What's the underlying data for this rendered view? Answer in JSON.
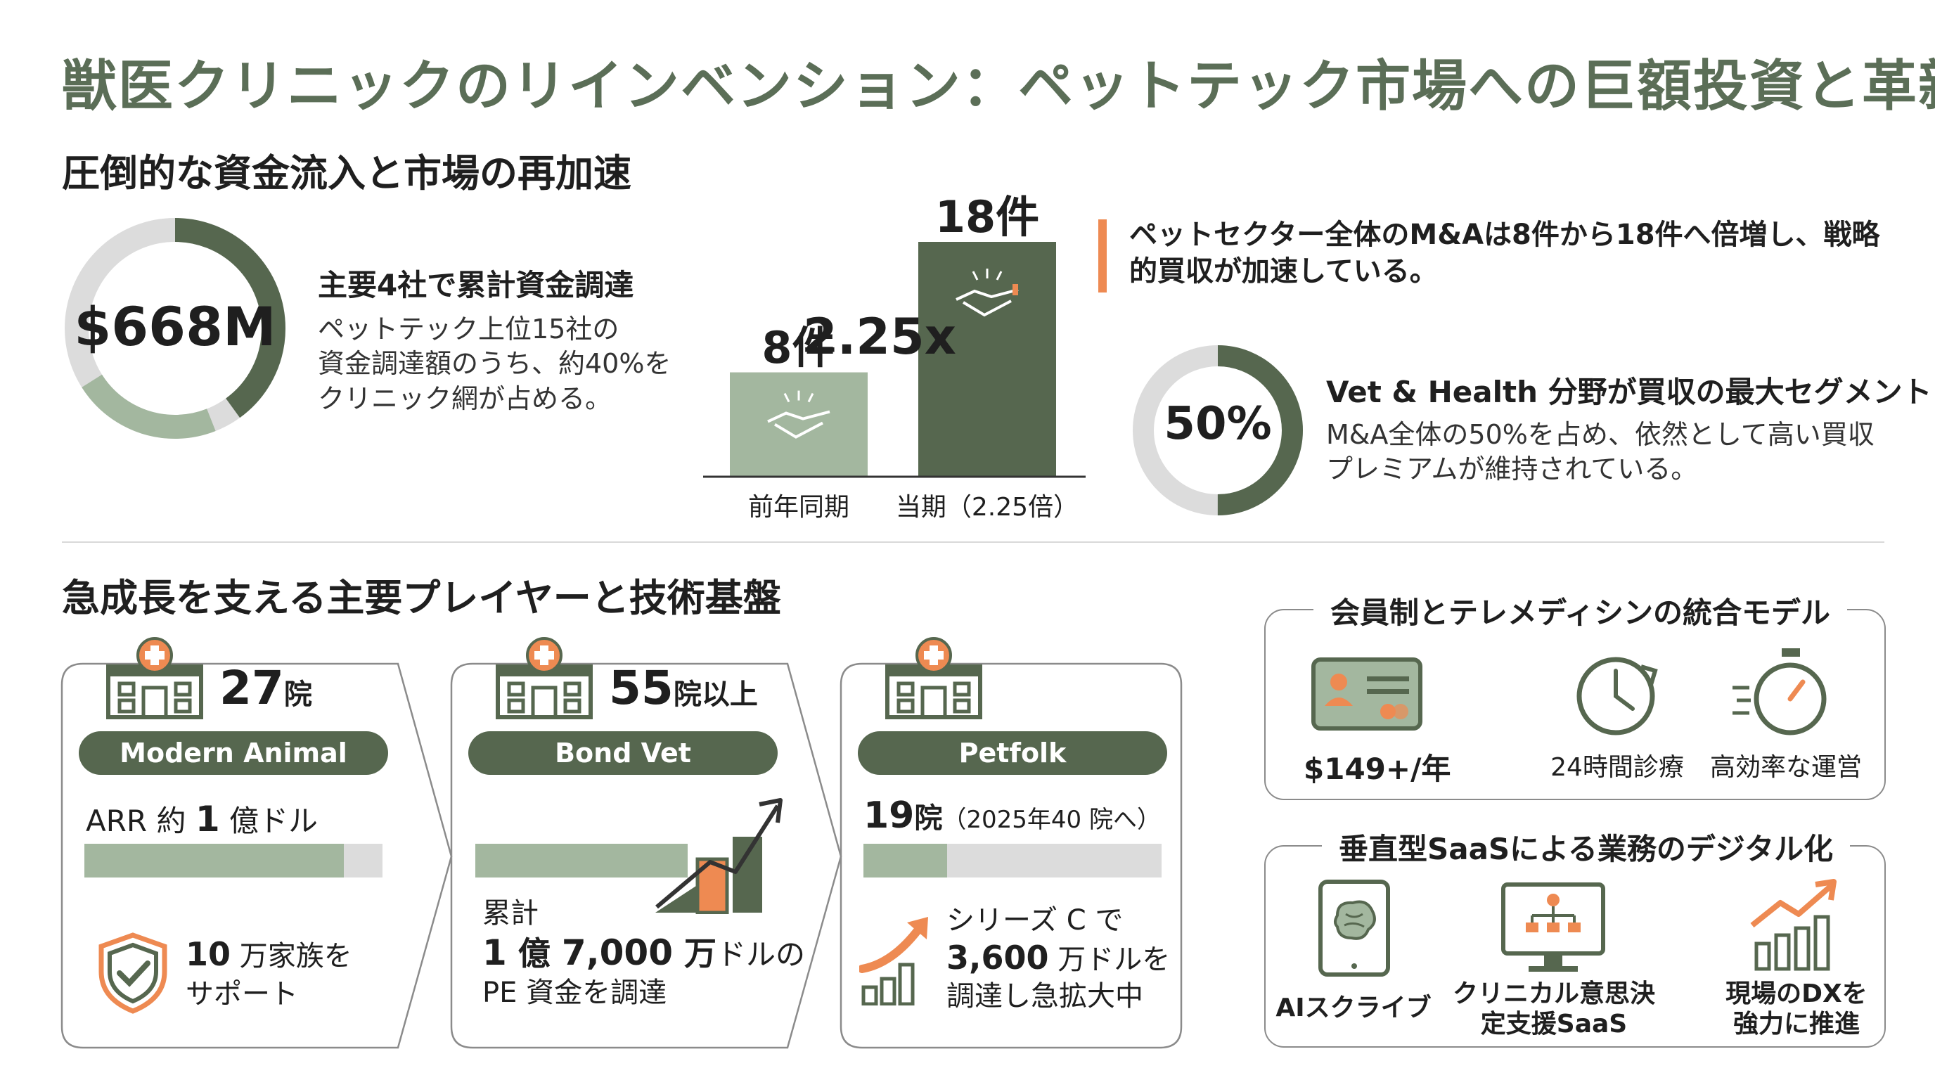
{
  "title": "獣医クリニックのリインベンション：ペットテック市場への巨額投資と革新",
  "section1": {
    "title": "圧倒的な資金流入と市場の再加速",
    "funding": {
      "value": "$668M",
      "share": 0.4,
      "label": "主要4社で累計資金調達",
      "desc_lines": [
        "ペットテック上位15社の",
        "資金調達額のうち、約40%を",
        "クリニック網が占める。"
      ]
    },
    "ma_chart": {
      "bars": [
        {
          "label": "前年同期",
          "value": 8,
          "value_label": "8件"
        },
        {
          "label": "当期（2.25倍）",
          "value": 18,
          "value_label": "18件"
        }
      ],
      "multiplier": "2.25x"
    },
    "ma_note_lines": [
      "ペットセクター全体のM&Aは8件から18件へ倍増し、戦略",
      "的買収が加速している。"
    ],
    "vet_share": {
      "value": "50%",
      "share": 0.5,
      "label": "Vet & Health 分野が買収の最大セグメント",
      "desc_lines": [
        "M&A全体の50%を占め、依然として高い買収",
        "プレミアムが維持されている。"
      ]
    }
  },
  "section2": {
    "title": "急成長を支える主要プレイヤーと技術基盤",
    "cards": [
      {
        "count": "27",
        "count_unit": "院",
        "name": "Modern Animal",
        "metric_pre": "ARR 約 ",
        "metric_num": "1",
        "metric_post": " 億ドル",
        "progress": 0.87,
        "foot_num": "10",
        "foot_line1": " 万家族を",
        "foot_line2": "サポート"
      },
      {
        "count": "55",
        "count_unit": "院以上",
        "name": "Bond Vet",
        "progress": 0.72,
        "line1": "累計",
        "line2_num1": "1",
        "line2_mid1": " 億 ",
        "line2_num2": "7,000",
        "line2_mid2": " 万",
        "line2_post": "ドルの",
        "line3": "PE 資金を調達"
      },
      {
        "count": "19",
        "count_unit": "院",
        "name": "Petfolk",
        "metric_note": "（2025年40 院へ）",
        "progress": 0.28,
        "foot_line1": "シリーズ C で",
        "foot_num": "3,600",
        "foot_line2_post": " 万ドルを",
        "foot_line3": "調達し急拡大中"
      }
    ],
    "membership": {
      "title": "会員制とテレメディシンの統合モデル",
      "items": [
        {
          "icon": "member-card-icon",
          "label": "$149+/年"
        },
        {
          "icon": "clock-icon",
          "label": "24時間診療"
        },
        {
          "icon": "stopwatch-icon",
          "label": "高効率な運営"
        }
      ]
    },
    "saas": {
      "title": "垂直型SaaSによる業務のデジタル化",
      "items": [
        {
          "icon": "ai-tablet-icon",
          "label_lines": [
            "AIスクライブ"
          ]
        },
        {
          "icon": "decision-monitor-icon",
          "label_lines": [
            "クリニカル意思決",
            "定支援SaaS"
          ]
        },
        {
          "icon": "growth-chart-icon",
          "label_lines": [
            "現場のDXを",
            "強力に推進"
          ]
        }
      ]
    }
  },
  "colors": {
    "dark_green": "#56674f",
    "light_green": "#a3b79f",
    "gray": "#dcdcdc",
    "orange": "#ee8a52",
    "title_green": "#5b6e57"
  }
}
